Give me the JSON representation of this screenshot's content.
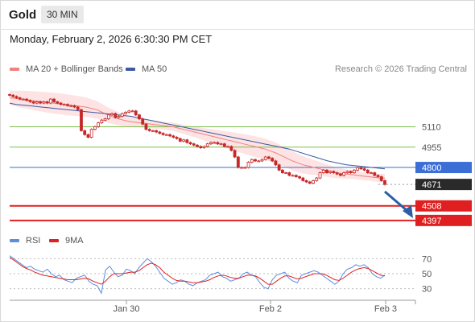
{
  "header": {
    "instrument": "Gold",
    "timeframe": "30 MIN"
  },
  "datetime": "Monday, February 2, 2026 6:30:30 PM CET",
  "legend": {
    "ma20_label": "MA 20 + Bollinger Bands",
    "ma50_label": "MA 50",
    "credit": "Research © 2026 Trading Central"
  },
  "rsi_legend": {
    "rsi_label": "RSI",
    "ma_label": "9MA"
  },
  "colors": {
    "ma20": "#f08080",
    "band": "#fbd0d0",
    "ma50": "#3b5aa0",
    "candle": "#c62828",
    "support": "#e02020",
    "resistance": "#7bbf4a",
    "pivot": "#3b6fd6",
    "last": "#2a2a2a",
    "rsi": "#5b8de0",
    "rsi_ma": "#e02020"
  },
  "chart_data": {
    "type": "candlestick",
    "x_tick_labels": [
      "Jan 30",
      "Feb 2",
      "Feb 3"
    ],
    "y_price_levels": [
      {
        "label": "5110",
        "value": 5110,
        "kind": "resistance"
      },
      {
        "label": "4955",
        "value": 4955,
        "kind": "resistance"
      },
      {
        "label": "4800",
        "value": 4800,
        "kind": "pivot"
      },
      {
        "label": "4671",
        "value": 4671,
        "kind": "last"
      },
      {
        "label": "4508",
        "value": 4508,
        "kind": "support"
      },
      {
        "label": "4397",
        "value": 4397,
        "kind": "support"
      }
    ],
    "price_range": [
      4390,
      5370
    ],
    "close": [
      5350,
      5340,
      5330,
      5320,
      5320,
      5310,
      5300,
      5290,
      5300,
      5290,
      5300,
      5290,
      5320,
      5300,
      5290,
      5280,
      5280,
      5270,
      5270,
      5260,
      5240,
      5080,
      5050,
      5030,
      5090,
      5110,
      5140,
      5160,
      5170,
      5200,
      5210,
      5180,
      5190,
      5210,
      5220,
      5230,
      5230,
      5200,
      5170,
      5130,
      5090,
      5080,
      5080,
      5070,
      5060,
      5050,
      5050,
      5040,
      5030,
      5020,
      5000,
      5010,
      4990,
      4980,
      4970,
      4960,
      4950,
      4960,
      4980,
      4990,
      4990,
      4980,
      4980,
      4960,
      4960,
      4930,
      4880,
      4800,
      4800,
      4800,
      4840,
      4860,
      4850,
      4850,
      4860,
      4880,
      4870,
      4850,
      4820,
      4780,
      4760,
      4760,
      4740,
      4740,
      4730,
      4720,
      4700,
      4690,
      4680,
      4700,
      4720,
      4760,
      4780,
      4760,
      4770,
      4760,
      4750,
      4740,
      4760,
      4770,
      4760,
      4780,
      4800,
      4790,
      4780,
      4760,
      4760,
      4740,
      4730,
      4700,
      4671
    ],
    "ma20": [
      5330,
      5325,
      5320,
      5315,
      5310,
      5305,
      5300,
      5295,
      5290,
      5285,
      5280,
      5275,
      5270,
      5265,
      5260,
      5250,
      5240,
      5220,
      5200,
      5185,
      5170,
      5160,
      5150,
      5145,
      5140,
      5135,
      5130,
      5125,
      5120,
      5115,
      5110,
      5100,
      5090,
      5080,
      5070,
      5060,
      5050,
      5040,
      5030,
      5020,
      5010,
      5000,
      4990,
      4980,
      4970,
      4960,
      4950,
      4940,
      4925,
      4910,
      4890,
      4870,
      4850,
      4835,
      4820,
      4810,
      4800,
      4790,
      4780,
      4770,
      4760,
      4755,
      4750,
      4745,
      4740,
      4735,
      4730,
      4725,
      4720,
      4720
    ],
    "ma50": [
      5290,
      5280,
      5275,
      5270,
      5265,
      5260,
      5255,
      5250,
      5245,
      5240,
      5235,
      5230,
      5225,
      5220,
      5215,
      5210,
      5205,
      5200,
      5195,
      5190,
      5180,
      5170,
      5160,
      5150,
      5140,
      5130,
      5120,
      5110,
      5100,
      5090,
      5080,
      5070,
      5060,
      5050,
      5040,
      5030,
      5020,
      5010,
      5000,
      4990,
      4980,
      4970,
      4960,
      4950,
      4940,
      4925,
      4910,
      4895,
      4880,
      4865,
      4850,
      4840,
      4830,
      4820,
      4815,
      4810,
      4805,
      4800,
      4795,
      4790
    ],
    "rsi_levels": [
      70,
      50,
      30
    ],
    "rsi": [
      74,
      70,
      66,
      62,
      58,
      60,
      56,
      54,
      52,
      56,
      50,
      46,
      48,
      42,
      40,
      38,
      44,
      46,
      48,
      40,
      36,
      34,
      24,
      55,
      60,
      52,
      46,
      48,
      56,
      54,
      50,
      58,
      64,
      70,
      66,
      60,
      52,
      44,
      40,
      36,
      38,
      42,
      40,
      36,
      34,
      38,
      40,
      42,
      48,
      50,
      52,
      46,
      44,
      40,
      42,
      44,
      50,
      52,
      48,
      46,
      38,
      32,
      30,
      42,
      48,
      50,
      52,
      44,
      40,
      38,
      48,
      50,
      52,
      54,
      52,
      48,
      44,
      40,
      36,
      40,
      50,
      56,
      58,
      62,
      60,
      62,
      58,
      50,
      46,
      44,
      48
    ],
    "rsi_ma": [
      72,
      68,
      64,
      60,
      57,
      55,
      52,
      50,
      48,
      47,
      46,
      45,
      44,
      43,
      42,
      42,
      42,
      43,
      44,
      43,
      40,
      38,
      36,
      40,
      46,
      50,
      50,
      50,
      51,
      52,
      52,
      54,
      58,
      62,
      64,
      62,
      58,
      52,
      48,
      44,
      41,
      40,
      40,
      39,
      38,
      38,
      39,
      40,
      42,
      45,
      47,
      48,
      47,
      45,
      44,
      44,
      46,
      48,
      48,
      47,
      44,
      40,
      36,
      36,
      40,
      44,
      47,
      47,
      45,
      43,
      44,
      46,
      48,
      50,
      50,
      50,
      48,
      45,
      42,
      41,
      44,
      48,
      52,
      55,
      57,
      58,
      57,
      54,
      51,
      48,
      47
    ]
  }
}
